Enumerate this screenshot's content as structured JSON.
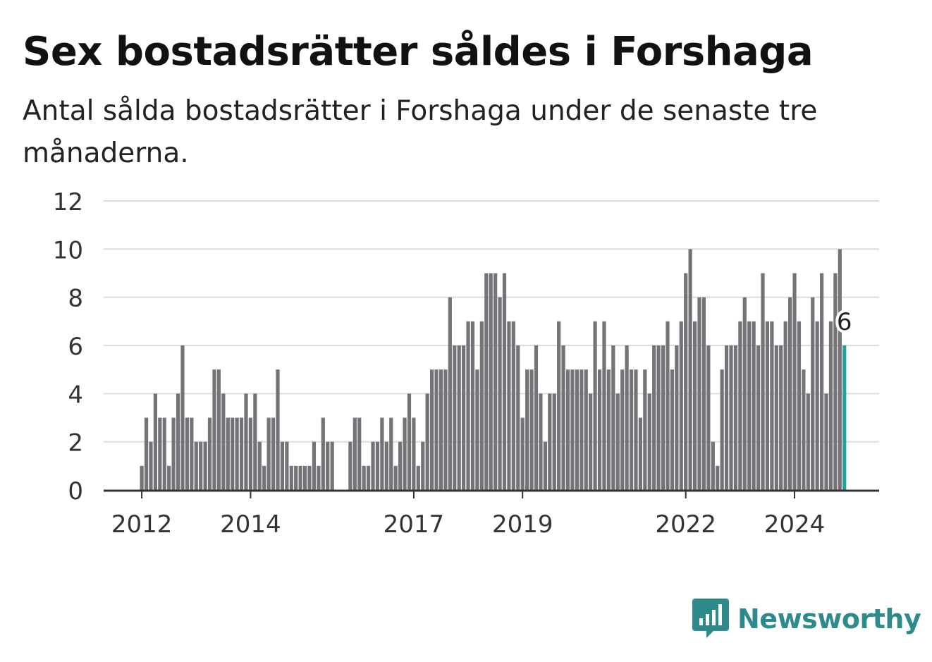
{
  "title": "Sex bostadsrätter såldes i Forshaga",
  "subtitle": "Antal sålda bostadsrätter i Forshaga under de senaste tre månaderna.",
  "brand": "Newsworthy",
  "colors": {
    "bar": "#737378",
    "highlight": "#1fa39c",
    "grid": "#dcdcdc",
    "axis": "#333333",
    "brand": "#2f8a8c"
  },
  "chart_data": {
    "type": "bar",
    "title": "Sex bostadsrätter såldes i Forshaga",
    "subtitle": "Antal sålda bostadsrätter i Forshaga under de senaste tre månaderna.",
    "xlabel": "",
    "ylabel": "",
    "ylim": [
      0,
      12
    ],
    "yticks": [
      0,
      2,
      4,
      6,
      8,
      10,
      12
    ],
    "grid": true,
    "frequency": "monthly",
    "start": "2012-01",
    "xticks": [
      {
        "label": "2012",
        "date": "2012-01"
      },
      {
        "label": "2014",
        "date": "2014-01"
      },
      {
        "label": "2017",
        "date": "2017-01"
      },
      {
        "label": "2019",
        "date": "2019-01"
      },
      {
        "label": "2022",
        "date": "2022-01"
      },
      {
        "label": "2024",
        "date": "2024-01"
      }
    ],
    "values": [
      1,
      3,
      2,
      4,
      3,
      3,
      1,
      3,
      4,
      6,
      3,
      3,
      2,
      2,
      2,
      3,
      5,
      5,
      4,
      3,
      3,
      3,
      3,
      4,
      3,
      4,
      2,
      1,
      3,
      3,
      5,
      2,
      2,
      1,
      1,
      1,
      1,
      1,
      2,
      1,
      3,
      2,
      2,
      0,
      0,
      0,
      2,
      3,
      3,
      1,
      1,
      2,
      2,
      3,
      2,
      3,
      1,
      2,
      3,
      4,
      3,
      1,
      2,
      4,
      5,
      5,
      5,
      5,
      8,
      6,
      6,
      6,
      7,
      7,
      5,
      7,
      9,
      9,
      9,
      8,
      9,
      7,
      7,
      6,
      3,
      5,
      5,
      6,
      4,
      2,
      4,
      4,
      7,
      6,
      5,
      5,
      5,
      5,
      5,
      4,
      7,
      5,
      7,
      5,
      6,
      4,
      5,
      6,
      5,
      5,
      3,
      5,
      4,
      6,
      6,
      6,
      7,
      5,
      6,
      7,
      9,
      10,
      7,
      8,
      8,
      6,
      2,
      1,
      5,
      6,
      6,
      6,
      7,
      8,
      7,
      7,
      6,
      9,
      7,
      7,
      6,
      6,
      7,
      8,
      9,
      7,
      5,
      4,
      8,
      7,
      9,
      4,
      7,
      9,
      10,
      6
    ],
    "last_value_label": "6",
    "highlight": "last"
  }
}
